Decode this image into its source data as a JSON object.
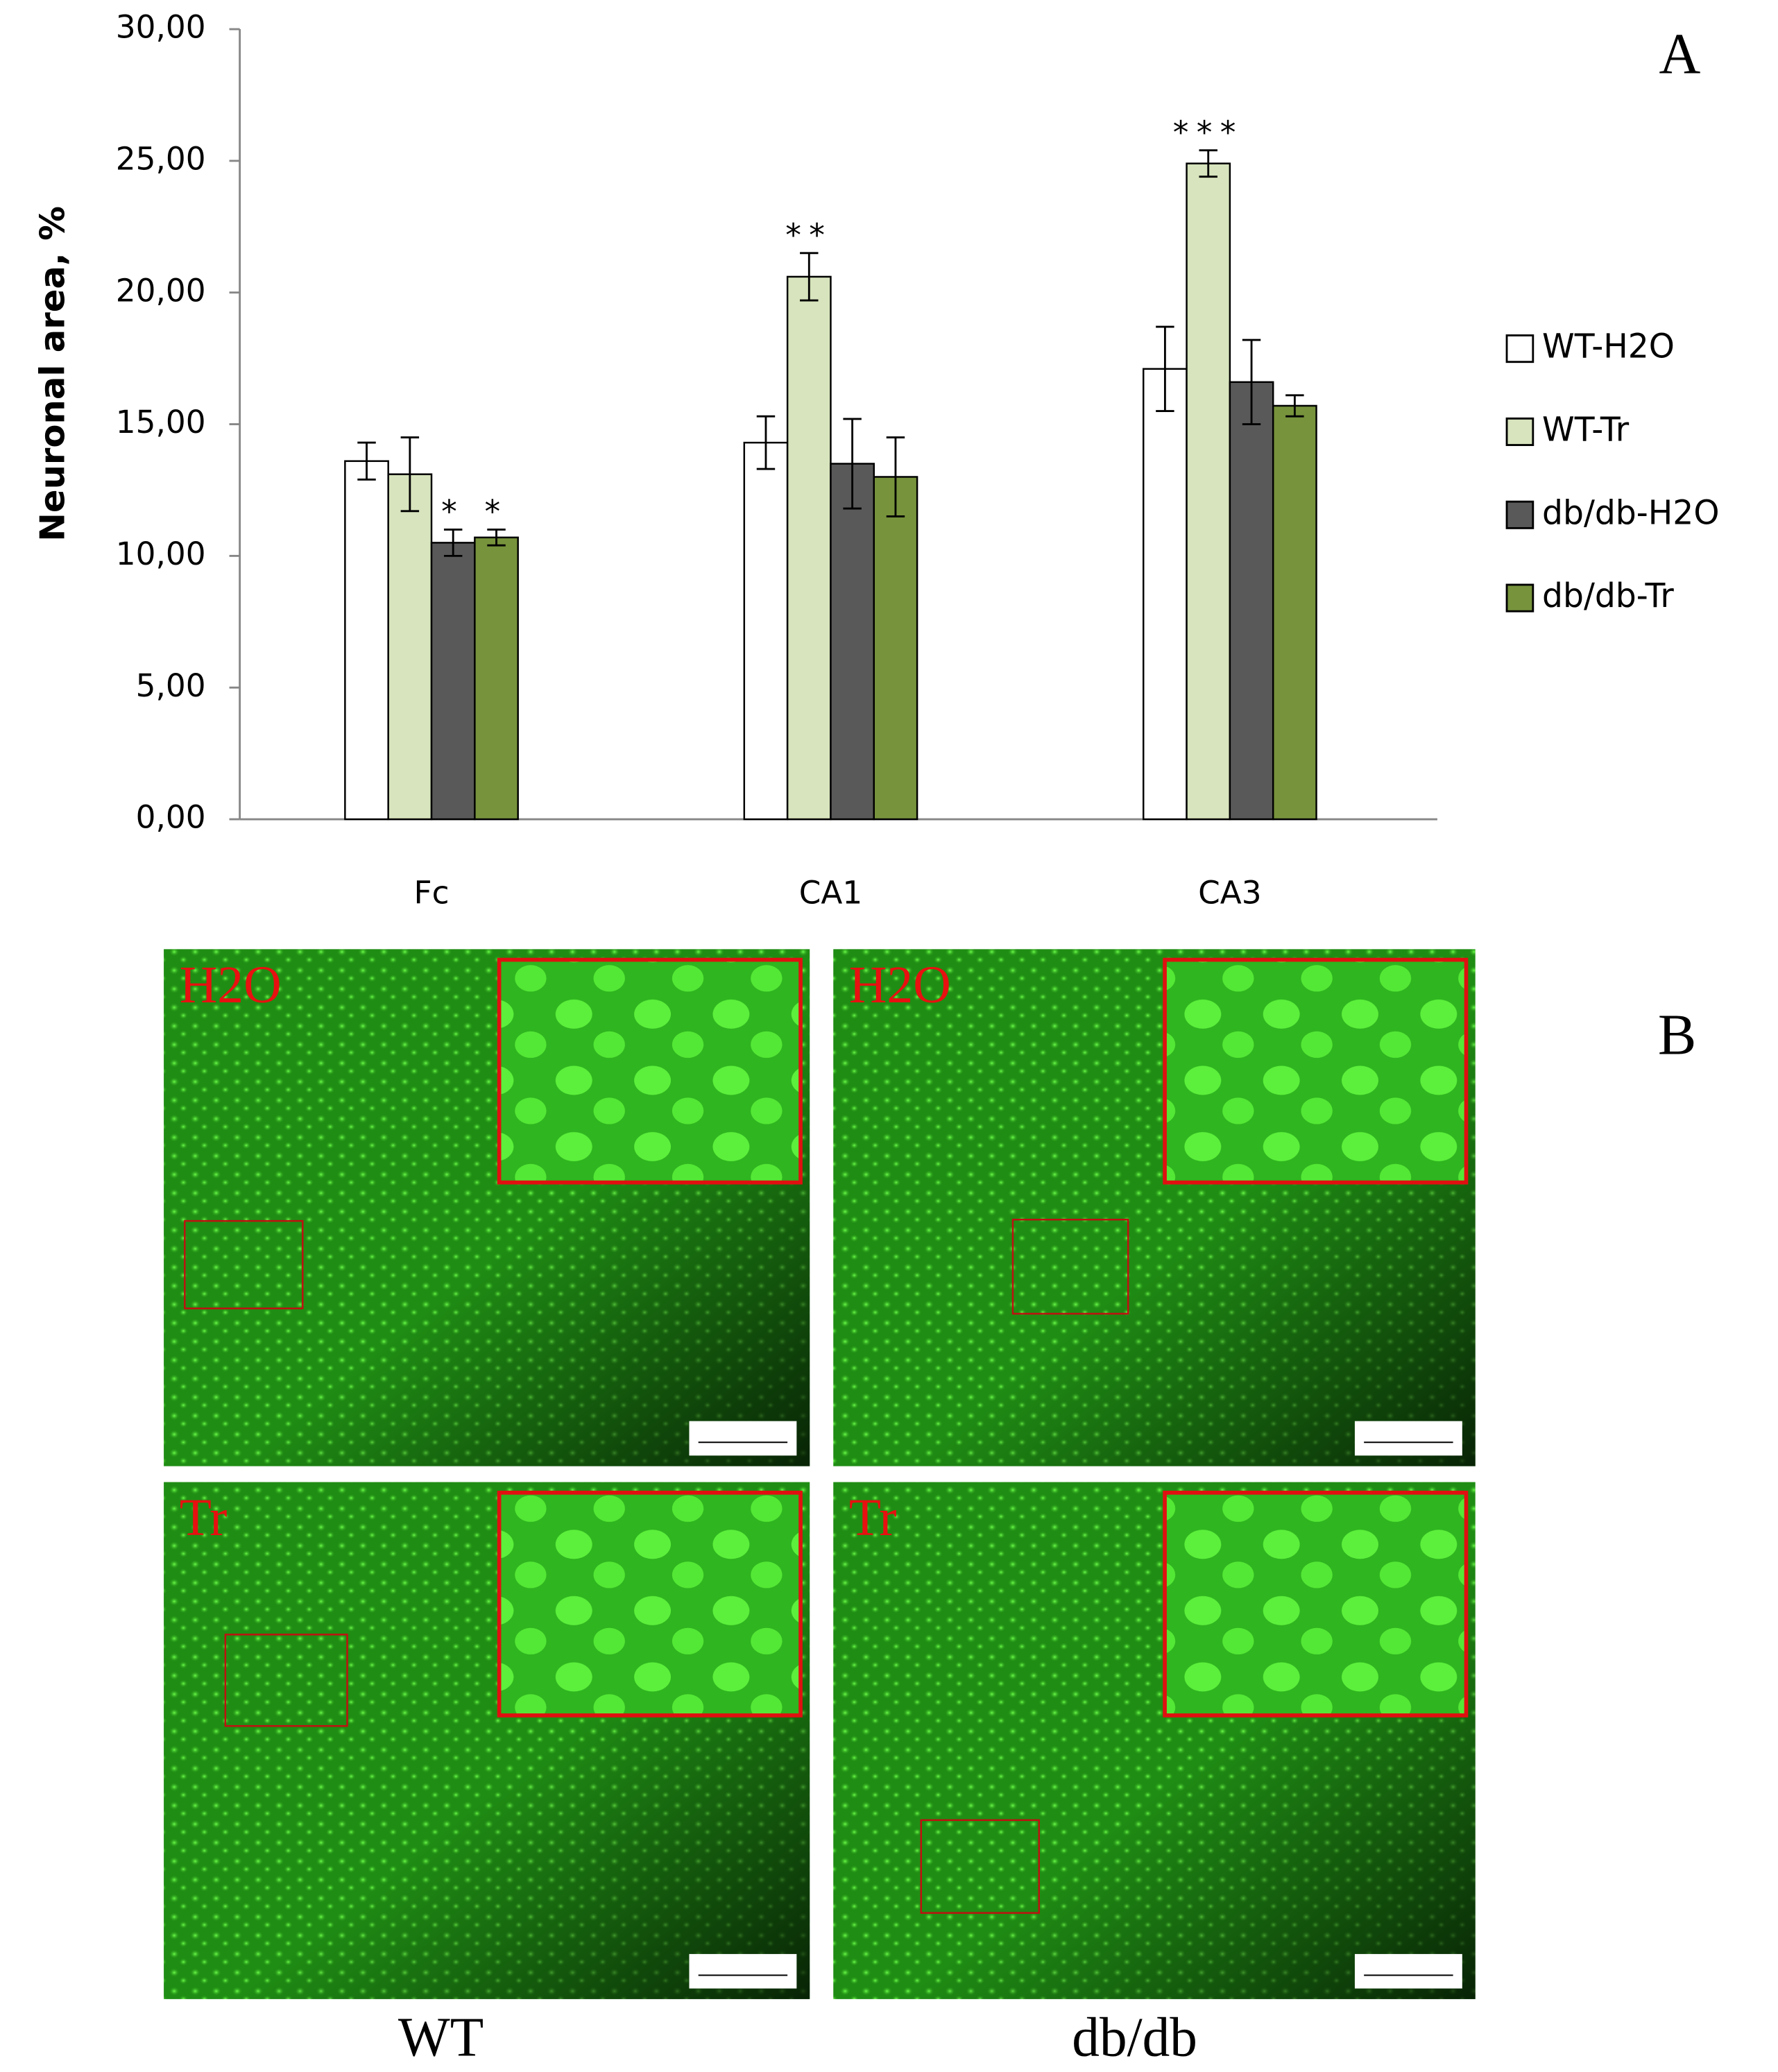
{
  "chart_data": {
    "type": "bar",
    "ylabel": "Neuronal area, %",
    "categories": [
      "Fc",
      "CA1",
      "CA3"
    ],
    "series": [
      {
        "name": "WT-H2O",
        "color": "#ffffff",
        "values": [
          13.6,
          14.3,
          17.1
        ],
        "errors": [
          0.7,
          1.0,
          1.6
        ],
        "markers": [
          null,
          null,
          null
        ]
      },
      {
        "name": "WT-Tr",
        "color": "#d7e4bd",
        "values": [
          13.1,
          20.6,
          24.9
        ],
        "errors": [
          1.4,
          0.9,
          0.5
        ],
        "markers": [
          null,
          "**",
          "***"
        ]
      },
      {
        "name": "db/db-H2O",
        "color": "#595959",
        "values": [
          10.5,
          13.5,
          16.6
        ],
        "errors": [
          0.5,
          1.7,
          1.6
        ],
        "markers": [
          "*",
          null,
          null
        ]
      },
      {
        "name": "db/db-Tr",
        "color": "#77933c",
        "values": [
          10.7,
          13.0,
          15.7
        ],
        "errors": [
          0.3,
          1.5,
          0.4
        ],
        "markers": [
          "*",
          null,
          null
        ]
      }
    ],
    "ylim": [
      0,
      30
    ],
    "yticks": [
      {
        "value": 0,
        "label": "0,00"
      },
      {
        "value": 5,
        "label": "5,00"
      },
      {
        "value": 10,
        "label": "10,00"
      },
      {
        "value": 15,
        "label": "15,00"
      },
      {
        "value": 20,
        "label": "20,00"
      },
      {
        "value": 25,
        "label": "25,00"
      },
      {
        "value": 30,
        "label": "30,00"
      }
    ],
    "legend": "right"
  },
  "panel_labels": [
    "A",
    "B"
  ],
  "images": {
    "rows": [
      "H2O",
      "Tr"
    ],
    "columns": [
      "WT",
      "db/db"
    ]
  }
}
